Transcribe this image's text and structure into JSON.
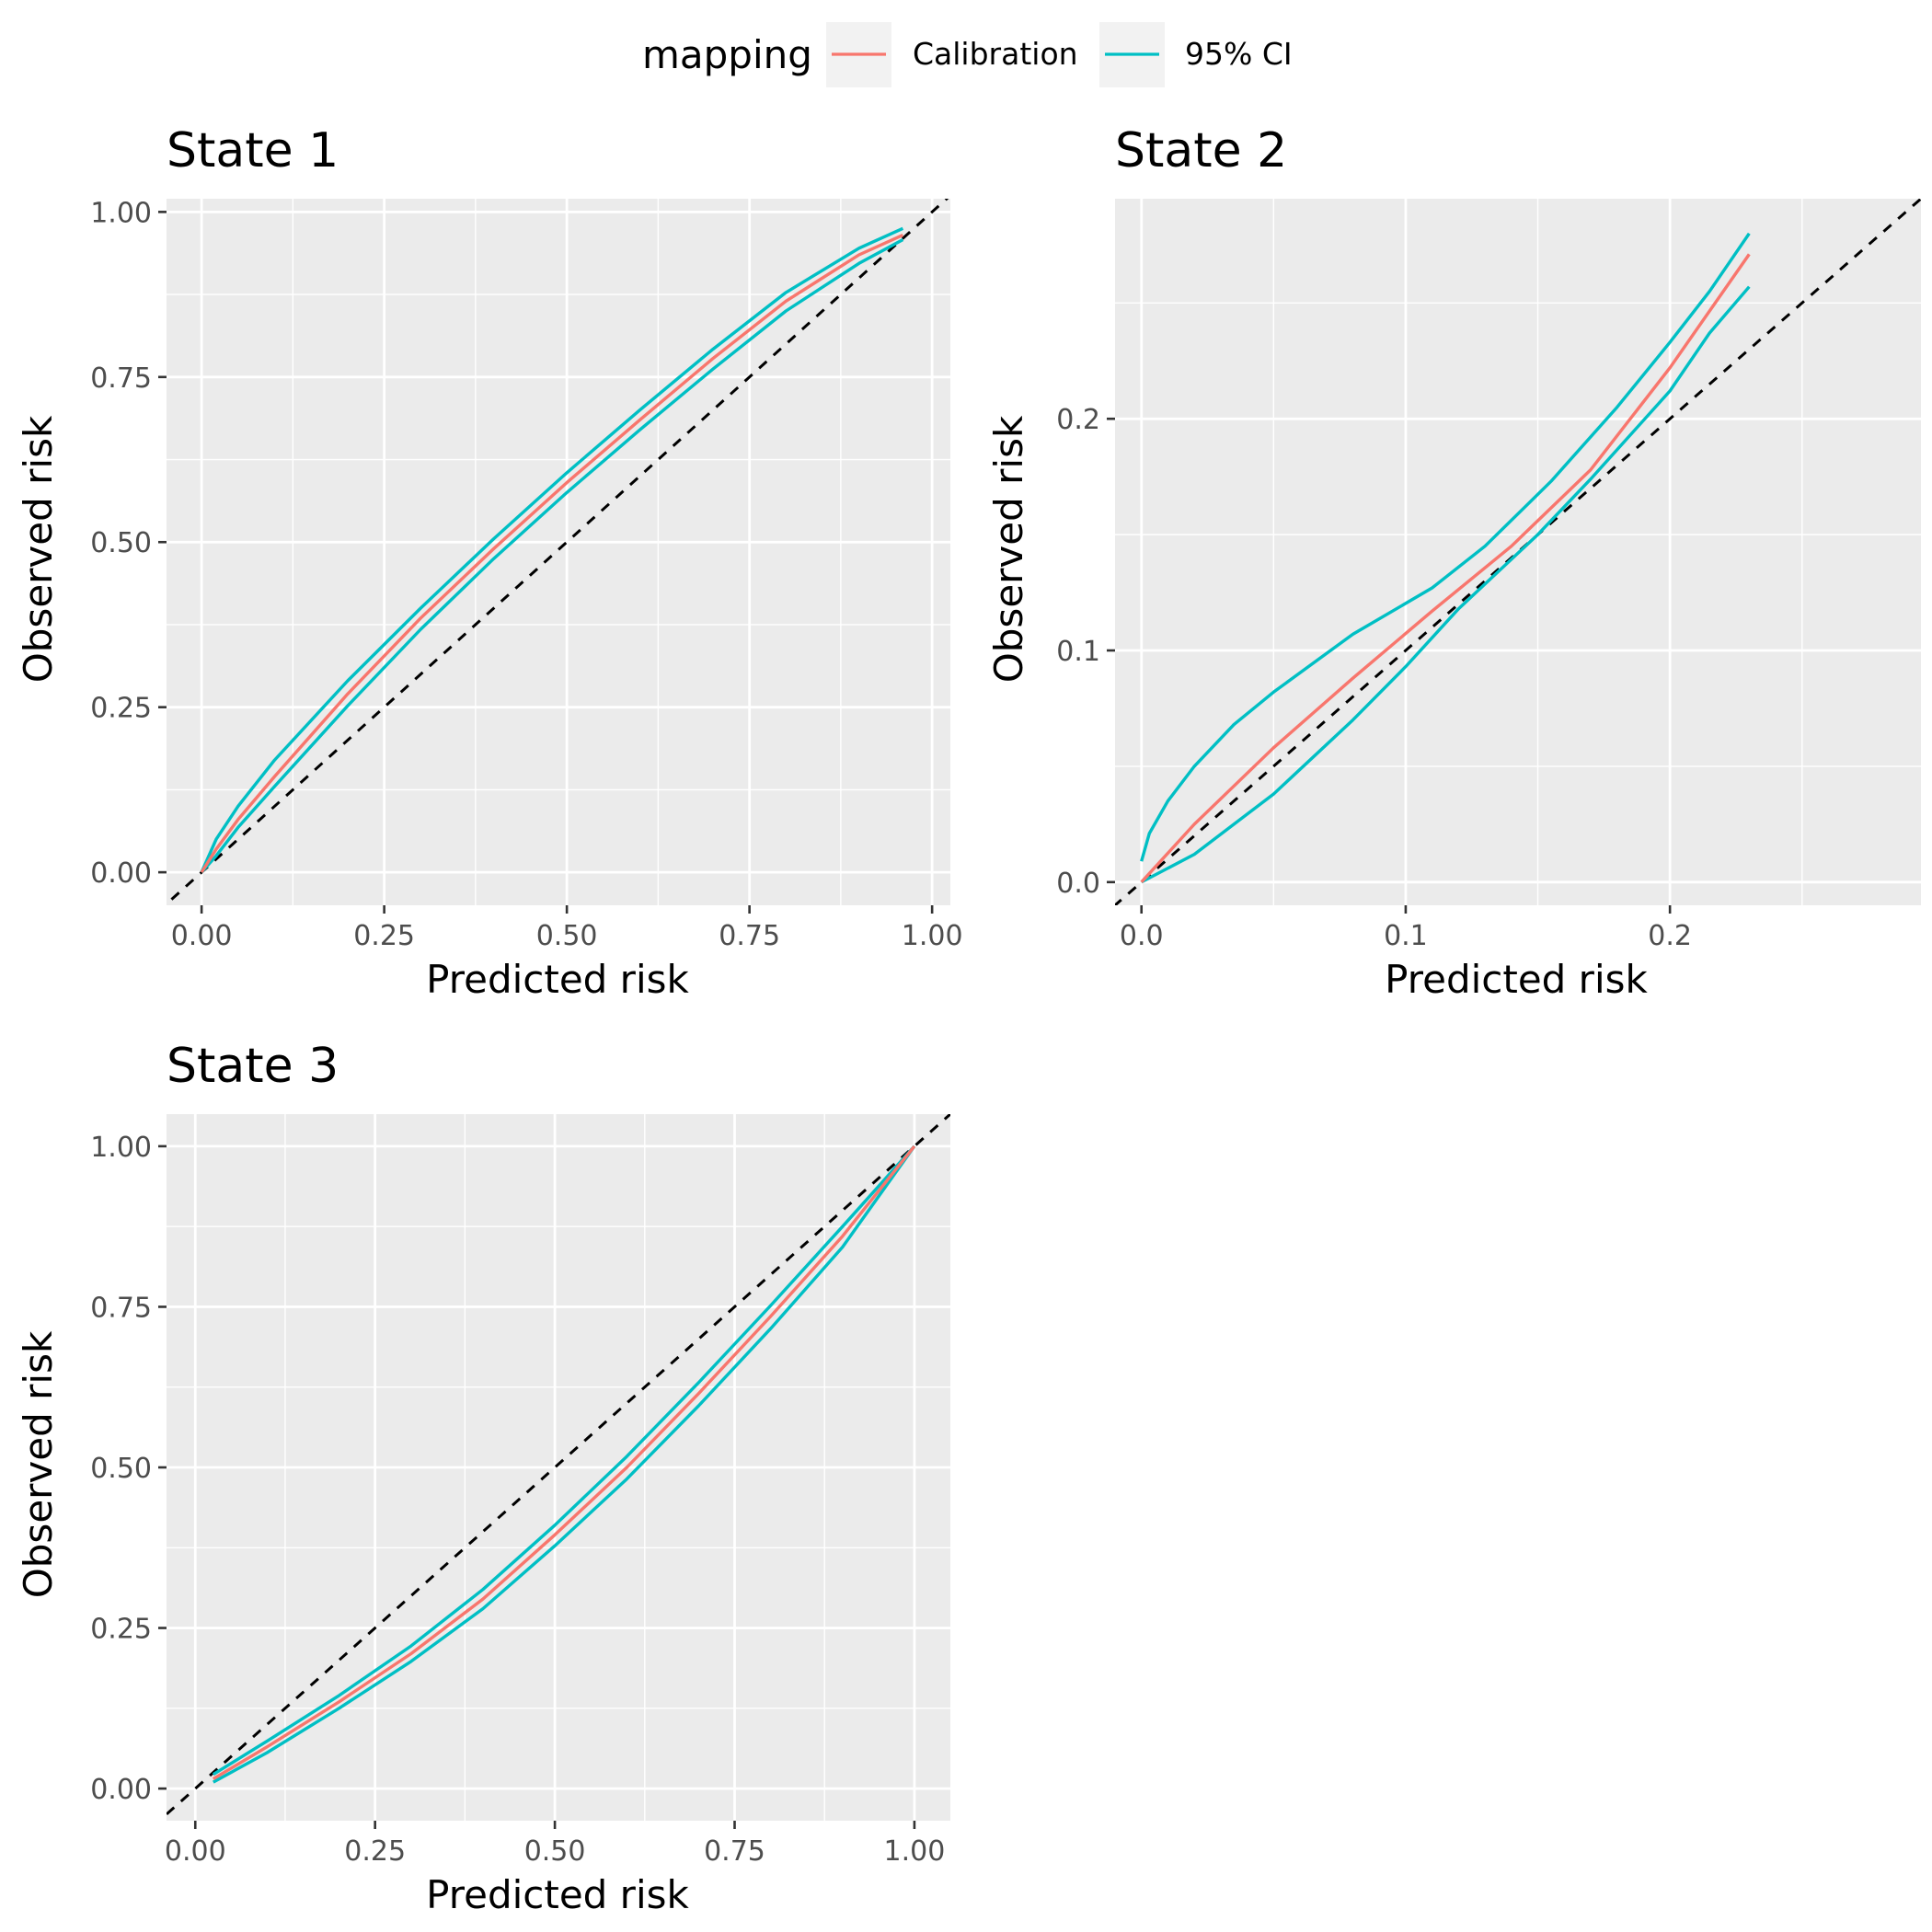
{
  "legend": {
    "title": "mapping",
    "items": [
      {
        "label": "Calibration",
        "color": "#F8766D"
      },
      {
        "label": "95% CI",
        "color": "#00BFC4"
      }
    ]
  },
  "colors": {
    "panel_background": "#EBEBEB",
    "grid": "#FFFFFF",
    "reference_line": "#000000",
    "calibration": "#F8766D",
    "ci": "#00BFC4"
  },
  "chart_data": [
    {
      "type": "line",
      "title": "State 1",
      "xlabel": "Predicted risk",
      "ylabel": "Observed risk",
      "xlim": [
        -0.048,
        1.025
      ],
      "ylim": [
        -0.05,
        1.02
      ],
      "x_ticks": [
        0,
        0.25,
        0.5,
        0.75,
        1
      ],
      "x_tick_labels": [
        "0.00",
        "0.25",
        "0.50",
        "0.75",
        "1.00"
      ],
      "y_ticks": [
        0,
        0.25,
        0.5,
        0.75,
        1
      ],
      "y_tick_labels": [
        "0.00",
        "0.25",
        "0.50",
        "0.75",
        "1.00"
      ],
      "grid": true,
      "reference_line": "y = x (dashed)",
      "series": [
        {
          "name": "Calibration",
          "x": [
            0.0,
            0.02,
            0.05,
            0.1,
            0.2,
            0.3,
            0.4,
            0.5,
            0.6,
            0.7,
            0.8,
            0.9,
            0.96
          ],
          "y": [
            0.0,
            0.035,
            0.08,
            0.145,
            0.27,
            0.385,
            0.49,
            0.59,
            0.685,
            0.778,
            0.865,
            0.935,
            0.965
          ]
        },
        {
          "name": "95% CI",
          "x": [
            0.0,
            0.02,
            0.05,
            0.1,
            0.2,
            0.3,
            0.4,
            0.5,
            0.6,
            0.7,
            0.8,
            0.9,
            0.96
          ],
          "y": [
            0.0,
            0.05,
            0.1,
            0.17,
            0.29,
            0.4,
            0.505,
            0.605,
            0.7,
            0.792,
            0.878,
            0.945,
            0.975
          ]
        },
        {
          "name": "95% CI",
          "x": [
            0.0,
            0.02,
            0.05,
            0.1,
            0.2,
            0.3,
            0.4,
            0.5,
            0.6,
            0.7,
            0.8,
            0.9,
            0.96
          ],
          "y": [
            0.0,
            0.025,
            0.068,
            0.13,
            0.252,
            0.368,
            0.475,
            0.575,
            0.67,
            0.762,
            0.85,
            0.922,
            0.958
          ]
        }
      ]
    },
    {
      "type": "line",
      "title": "State 2",
      "xlabel": "Predicted risk",
      "ylabel": "Observed risk",
      "xlim": [
        -0.01,
        0.295
      ],
      "ylim": [
        -0.01,
        0.295
      ],
      "x_ticks": [
        0,
        0.1,
        0.2
      ],
      "x_tick_labels": [
        "0.0",
        "0.1",
        "0.2"
      ],
      "y_ticks": [
        0,
        0.1,
        0.2
      ],
      "y_tick_labels": [
        "0.0",
        "0.1",
        "0.2"
      ],
      "grid": true,
      "reference_line": "y = x (dashed)",
      "series": [
        {
          "name": "Calibration",
          "x": [
            0.0,
            0.02,
            0.05,
            0.08,
            0.11,
            0.14,
            0.17,
            0.2,
            0.23
          ],
          "y": [
            0.0,
            0.025,
            0.058,
            0.088,
            0.117,
            0.145,
            0.178,
            0.222,
            0.271
          ]
        },
        {
          "name": "95% CI",
          "x": [
            0.0,
            0.003,
            0.01,
            0.02,
            0.035,
            0.05,
            0.08,
            0.11,
            0.13,
            0.155,
            0.18,
            0.2,
            0.215,
            0.23
          ],
          "y": [
            0.009,
            0.021,
            0.035,
            0.05,
            0.068,
            0.082,
            0.107,
            0.127,
            0.145,
            0.173,
            0.205,
            0.233,
            0.255,
            0.28
          ]
        },
        {
          "name": "95% CI",
          "x": [
            0.0,
            0.02,
            0.05,
            0.08,
            0.1,
            0.12,
            0.15,
            0.17,
            0.2,
            0.215,
            0.23
          ],
          "y": [
            0.0,
            0.012,
            0.038,
            0.07,
            0.093,
            0.118,
            0.15,
            0.174,
            0.212,
            0.237,
            0.257
          ]
        }
      ]
    },
    {
      "type": "line",
      "title": "State 3",
      "xlabel": "Predicted risk",
      "ylabel": "Observed risk",
      "xlim": [
        -0.04,
        1.05
      ],
      "ylim": [
        -0.05,
        1.05
      ],
      "x_ticks": [
        0,
        0.25,
        0.5,
        0.75,
        1
      ],
      "x_tick_labels": [
        "0.00",
        "0.25",
        "0.50",
        "0.75",
        "1.00"
      ],
      "y_ticks": [
        0,
        0.25,
        0.5,
        0.75,
        1
      ],
      "y_tick_labels": [
        "0.00",
        "0.25",
        "0.50",
        "0.75",
        "1.00"
      ],
      "grid": true,
      "reference_line": "y = x (dashed)",
      "series": [
        {
          "name": "Calibration",
          "x": [
            0.025,
            0.1,
            0.2,
            0.3,
            0.4,
            0.5,
            0.6,
            0.7,
            0.8,
            0.9,
            1.0
          ],
          "y": [
            0.015,
            0.065,
            0.135,
            0.21,
            0.295,
            0.395,
            0.5,
            0.615,
            0.735,
            0.86,
            1.0
          ]
        },
        {
          "name": "95% CI",
          "x": [
            0.025,
            0.1,
            0.2,
            0.3,
            0.4,
            0.5,
            0.6,
            0.7,
            0.8,
            0.9,
            1.0
          ],
          "y": [
            0.022,
            0.074,
            0.145,
            0.222,
            0.31,
            0.41,
            0.517,
            0.632,
            0.752,
            0.875,
            1.0
          ]
        },
        {
          "name": "95% CI",
          "x": [
            0.025,
            0.1,
            0.2,
            0.3,
            0.4,
            0.5,
            0.6,
            0.7,
            0.8,
            0.9,
            1.0
          ],
          "y": [
            0.01,
            0.056,
            0.125,
            0.198,
            0.28,
            0.378,
            0.482,
            0.596,
            0.716,
            0.843,
            1.0
          ]
        }
      ]
    }
  ]
}
